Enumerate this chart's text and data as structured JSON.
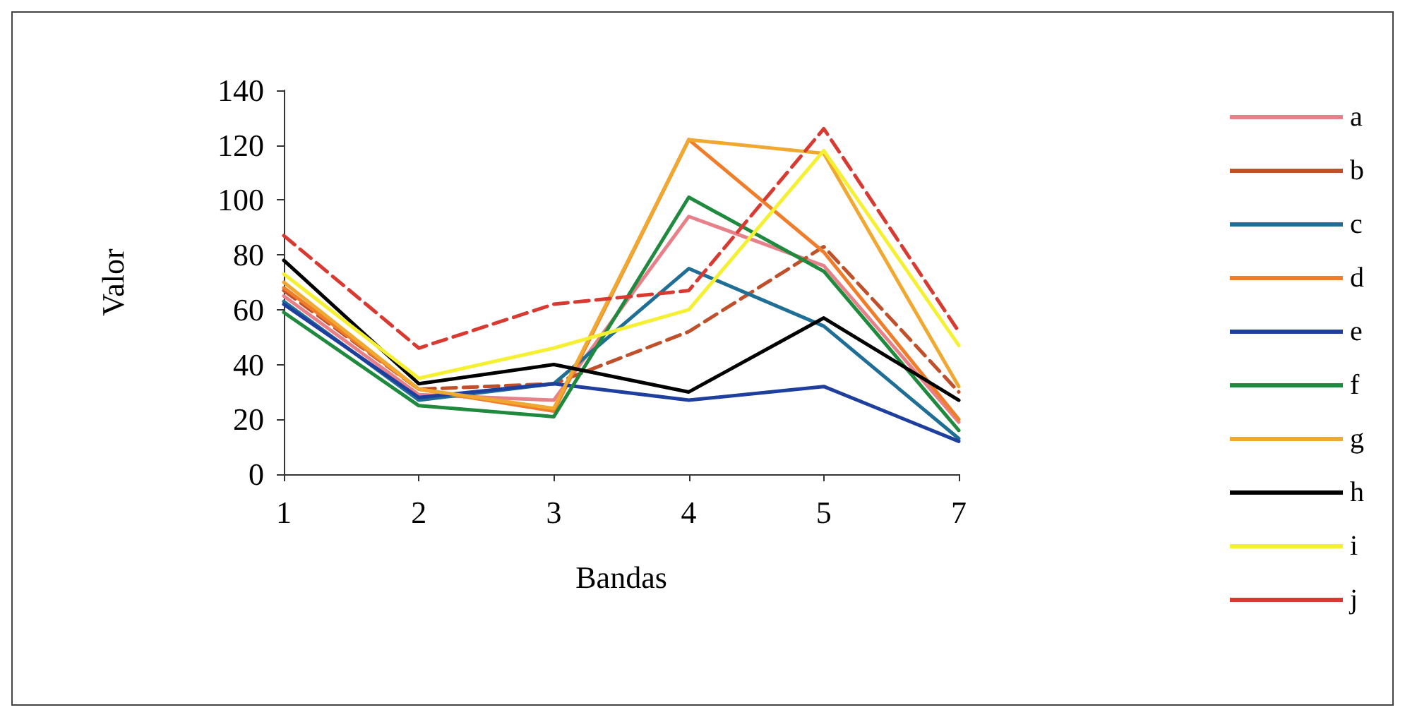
{
  "chart_data": {
    "type": "line",
    "xlabel": "Bandas",
    "ylabel": "Valor",
    "categories": [
      "1",
      "2",
      "3",
      "4",
      "5",
      "7"
    ],
    "ylim": [
      0,
      140
    ],
    "yticks": [
      0,
      20,
      40,
      60,
      80,
      100,
      120,
      140
    ],
    "grid": false,
    "legend": "right",
    "marker": "none",
    "series": [
      {
        "name": "a",
        "color": "#e8808a",
        "values": [
          65,
          29,
          27,
          94,
          76,
          19
        ]
      },
      {
        "name": "b",
        "color": "#c0502a",
        "line_style": "dashed",
        "values": [
          67,
          31,
          33,
          52,
          83,
          30
        ]
      },
      {
        "name": "c",
        "color": "#1f6e96",
        "values": [
          63,
          27,
          33,
          75,
          54,
          13
        ]
      },
      {
        "name": "d",
        "color": "#f07d2a",
        "values": [
          68,
          31,
          23,
          122,
          81,
          20
        ]
      },
      {
        "name": "e",
        "color": "#1f3f9e",
        "values": [
          62,
          28,
          33,
          27,
          32,
          12
        ]
      },
      {
        "name": "f",
        "color": "#1f8a3e",
        "values": [
          59,
          25,
          21,
          101,
          74,
          16
        ]
      },
      {
        "name": "g",
        "color": "#f0a830",
        "values": [
          70,
          31,
          24,
          122,
          117,
          32
        ]
      },
      {
        "name": "h",
        "color": "#000000",
        "values": [
          78,
          33,
          40,
          30,
          57,
          27
        ]
      },
      {
        "name": "i",
        "color": "#f5f032",
        "values": [
          73,
          35,
          46,
          60,
          118,
          47
        ]
      },
      {
        "name": "j",
        "color": "#d83a32",
        "line_style": "dashed",
        "values": [
          87,
          46,
          62,
          67,
          126,
          52
        ]
      }
    ]
  }
}
